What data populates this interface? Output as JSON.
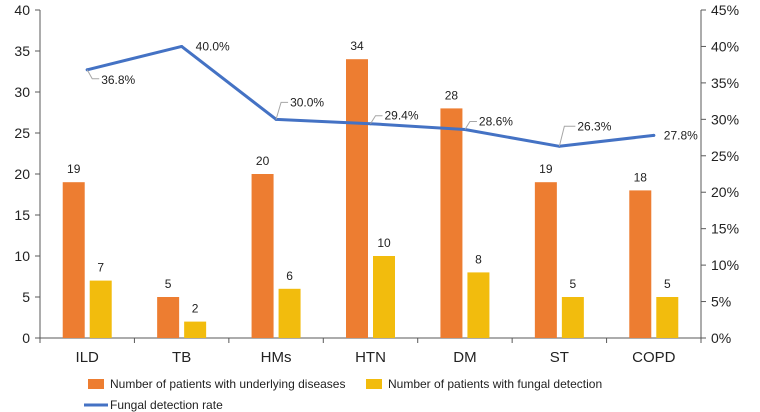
{
  "chart_data": {
    "type": "bar",
    "categories": [
      "ILD",
      "TB",
      "HMs",
      "HTN",
      "DM",
      "ST",
      "COPD"
    ],
    "series": [
      {
        "name": "Number of patients with underlying diseases",
        "kind": "bar",
        "axis": "left",
        "color": "#ED7D31",
        "values": [
          19,
          5,
          20,
          34,
          28,
          19,
          18
        ],
        "labels": [
          "19",
          "5",
          "20",
          "34",
          "28",
          "19",
          "18"
        ]
      },
      {
        "name": "Number of patients with fungal detection",
        "kind": "bar",
        "axis": "left",
        "color": "#F2BC0D",
        "values": [
          7,
          2,
          6,
          10,
          8,
          5,
          5
        ],
        "labels": [
          "7",
          "2",
          "6",
          "10",
          "8",
          "5",
          "5"
        ]
      },
      {
        "name": "Fungal detection rate",
        "kind": "line",
        "axis": "right",
        "color": "#4472C4",
        "values": [
          36.8,
          40.0,
          30.0,
          29.4,
          28.6,
          26.3,
          27.8
        ],
        "labels": [
          "36.8%",
          "40.0%",
          "30.0%",
          "29.4%",
          "28.6%",
          "26.3%",
          "27.8%"
        ]
      }
    ],
    "y_left": {
      "range": [
        0,
        40
      ],
      "ticks": [
        0,
        5,
        10,
        15,
        20,
        25,
        30,
        35,
        40
      ],
      "tick_labels": [
        "0",
        "5",
        "10",
        "15",
        "20",
        "25",
        "30",
        "35",
        "40"
      ]
    },
    "y_right": {
      "range": [
        0,
        45
      ],
      "ticks": [
        0,
        5,
        10,
        15,
        20,
        25,
        30,
        35,
        40,
        45
      ],
      "tick_labels": [
        "0%",
        "5%",
        "10%",
        "15%",
        "20%",
        "25%",
        "30%",
        "35%",
        "40%",
        "45%"
      ]
    },
    "title": "",
    "xlabel": "",
    "ylabel": "",
    "grid": false,
    "legend_position": "bottom"
  }
}
